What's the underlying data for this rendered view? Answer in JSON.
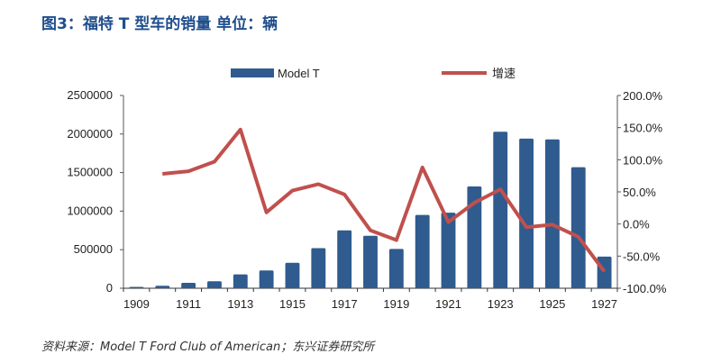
{
  "title": "图3：福特 T 型车的销量  单位：辆",
  "source": "资料来源：Model T Ford Club of American；东兴证券研究所",
  "colors": {
    "bar": "#2f5b8f",
    "line": "#c0504d"
  },
  "chart_data": {
    "type": "bar+line",
    "categories": [
      "1909",
      "1910",
      "1911",
      "1912",
      "1913",
      "1914",
      "1915",
      "1916",
      "1917",
      "1918",
      "1919",
      "1920",
      "1921",
      "1922",
      "1923",
      "1924",
      "1925",
      "1926",
      "1927"
    ],
    "x_tick_labels": [
      "1909",
      "1911",
      "1913",
      "1915",
      "1917",
      "1919",
      "1921",
      "1923",
      "1925",
      "1927"
    ],
    "series": [
      {
        "name": "Model T",
        "type": "bar",
        "axis": "left",
        "values": [
          18000,
          32000,
          70000,
          90000,
          180000,
          230000,
          330000,
          520000,
          750000,
          680000,
          510000,
          950000,
          980000,
          1320000,
          2030000,
          1940000,
          1930000,
          1570000,
          410000
        ]
      },
      {
        "name": "增速",
        "type": "line",
        "axis": "right",
        "values": [
          null,
          78,
          82,
          97,
          147,
          18,
          52,
          62,
          46,
          -10,
          -25,
          88,
          3,
          33,
          54,
          -5,
          -1,
          -20,
          -74
        ]
      }
    ],
    "left_axis": {
      "range": [
        0,
        2500000
      ],
      "ticks": [
        "0",
        "500000",
        "1000000",
        "1500000",
        "2000000",
        "2500000"
      ]
    },
    "right_axis": {
      "range": [
        -100,
        200
      ],
      "ticks": [
        "-100.0%",
        "-50.0%",
        "0.0%",
        "50.0%",
        "100.0%",
        "150.0%",
        "200.0%"
      ]
    },
    "legend": "top"
  }
}
